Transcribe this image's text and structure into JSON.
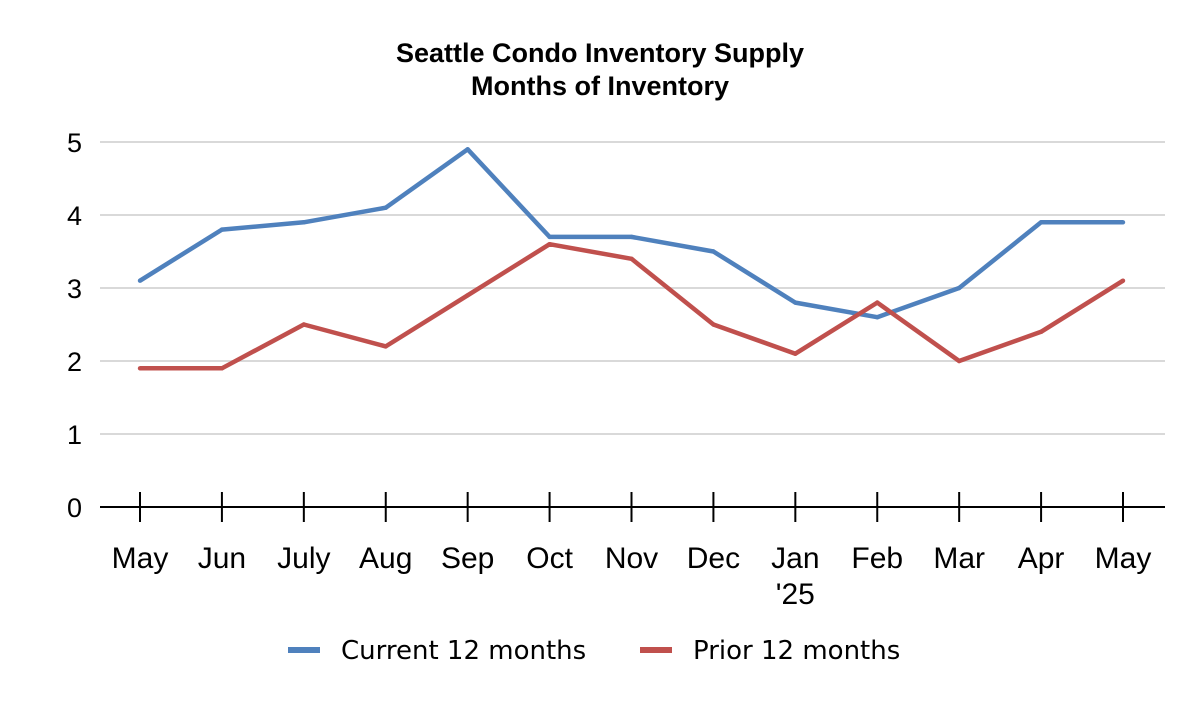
{
  "chart_data": {
    "type": "line",
    "title": [
      "Seattle Condo Inventory Supply",
      "Months of Inventory"
    ],
    "categories": [
      "May",
      "Jun",
      "July",
      "Aug",
      "Sep",
      "Oct",
      "Nov",
      "Dec",
      "Jan\n'25",
      "Feb",
      "Mar",
      "Apr",
      "May"
    ],
    "series": [
      {
        "name": "Current 12 months",
        "color": "#4f81bd",
        "values": [
          3.1,
          3.8,
          3.9,
          4.1,
          4.9,
          3.7,
          3.7,
          3.5,
          2.8,
          2.6,
          3.0,
          3.9,
          3.9
        ]
      },
      {
        "name": "Prior 12 months",
        "color": "#c0504d",
        "values": [
          1.9,
          1.9,
          2.5,
          2.2,
          2.9,
          3.6,
          3.4,
          2.5,
          2.1,
          2.8,
          2.0,
          2.4,
          3.1
        ]
      }
    ],
    "y_ticks": [
      0,
      1,
      2,
      3,
      4,
      5
    ],
    "ylim": [
      0,
      5
    ],
    "grid": true,
    "legend_position": "bottom"
  }
}
